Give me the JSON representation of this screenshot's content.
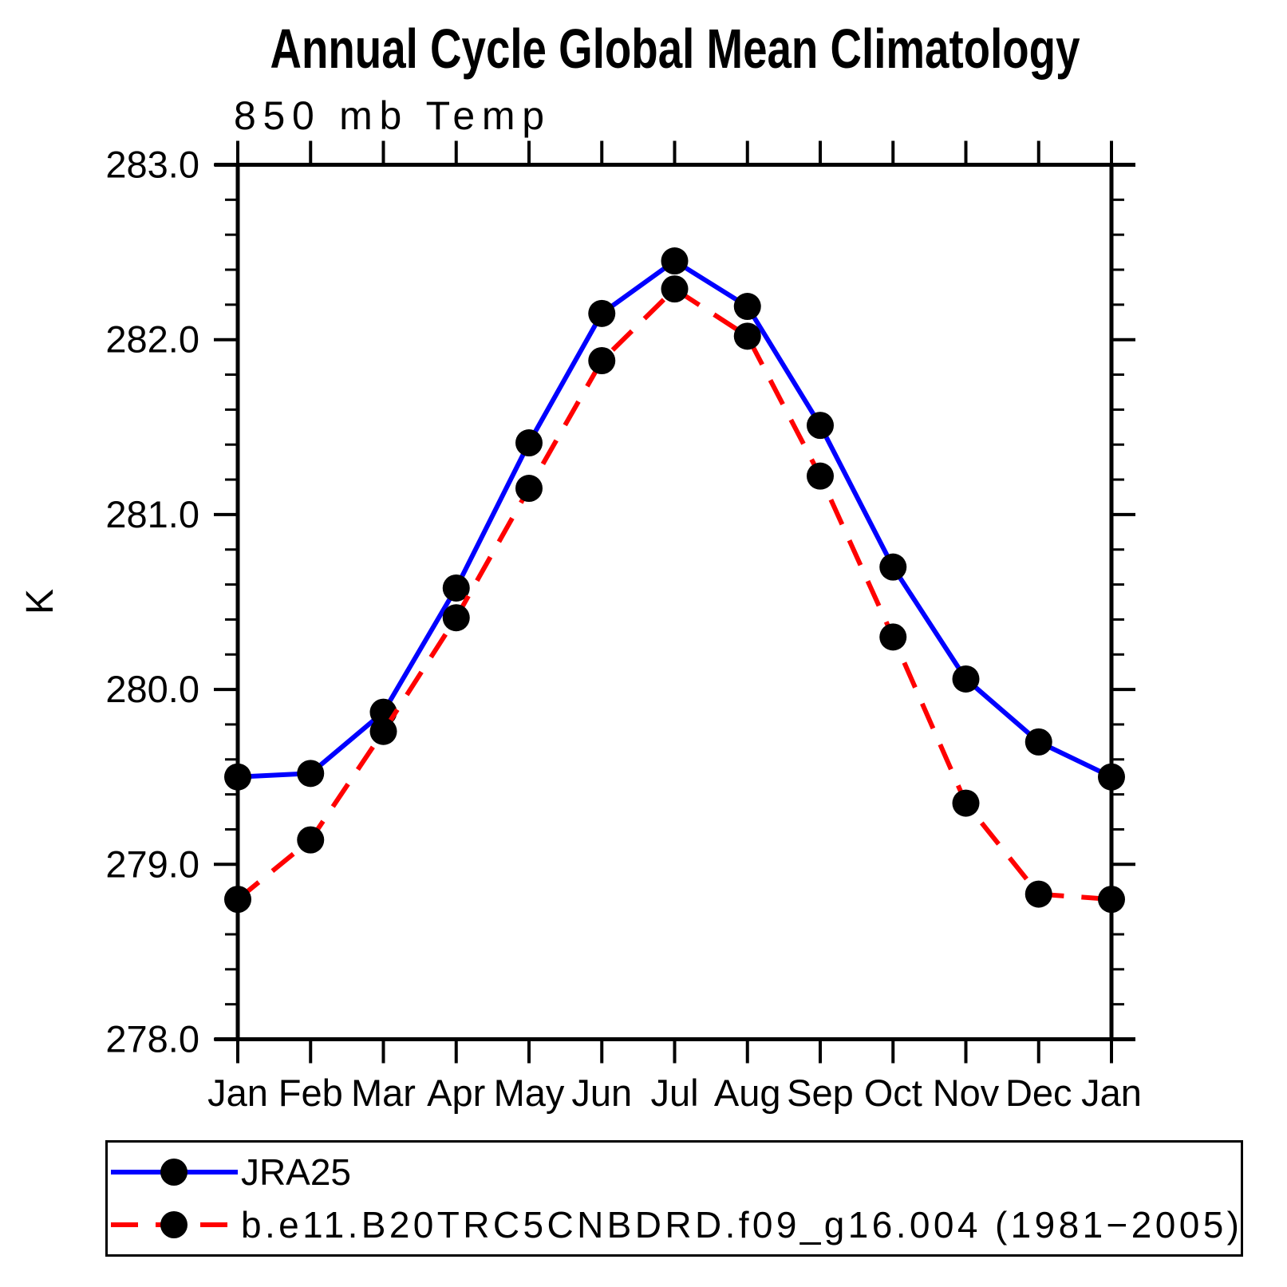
{
  "titles": {
    "main": "Annual Cycle Global Mean Climatology",
    "left": "850 mb Temp"
  },
  "chart_data": {
    "type": "line",
    "title": "Annual Cycle Global Mean Climatology",
    "subtitle_left": "850 mb Temp",
    "ylabel": "K",
    "xlabel": "",
    "categories": [
      "Jan",
      "Feb",
      "Mar",
      "Apr",
      "May",
      "Jun",
      "Jul",
      "Aug",
      "Sep",
      "Oct",
      "Nov",
      "Dec",
      "Jan"
    ],
    "ylim": [
      278.0,
      283.0
    ],
    "ytick_interval_major": 1.0,
    "ytick_interval_minor": 0.2,
    "ytick_labels": [
      "283.0",
      "282.0",
      "281.0",
      "280.0",
      "279.0",
      "278.0"
    ],
    "grid": false,
    "legend_position": "bottom",
    "series": [
      {
        "name": "JRA25",
        "color": "#0000ff",
        "line_style": "solid",
        "marker": "filled-circle",
        "marker_color": "#000000",
        "values": [
          279.5,
          279.52,
          279.87,
          280.58,
          281.41,
          282.15,
          282.45,
          282.19,
          281.51,
          280.7,
          280.06,
          279.7,
          279.5
        ]
      },
      {
        "name": "b.e11.B20TRC5CNBDRD.f09_g16.004 (1981−2005)",
        "color": "#ff0000",
        "line_style": "dashed",
        "marker": "filled-circle",
        "marker_color": "#000000",
        "values": [
          278.8,
          279.14,
          279.76,
          280.41,
          281.15,
          281.88,
          282.29,
          282.02,
          281.22,
          280.3,
          279.35,
          278.83,
          278.8
        ]
      }
    ]
  }
}
